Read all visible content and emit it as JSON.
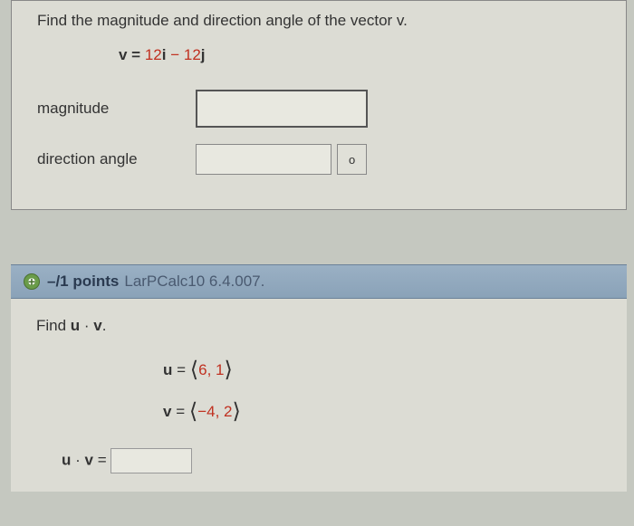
{
  "question1": {
    "prompt": "Find the magnitude and direction angle of the vector v.",
    "equation_prefix": "v = ",
    "coef1": "12",
    "unit1": "i",
    "op": " − ",
    "coef2": "12",
    "unit2": "j",
    "magnitude_label": "magnitude",
    "direction_label": "direction angle",
    "degree_symbol": "o"
  },
  "header": {
    "plus": "+",
    "points": "–/1 points",
    "reference": "LarPCalc10 6.4.007."
  },
  "question2": {
    "prompt_prefix": "Find ",
    "prompt_u": "u",
    "prompt_dot": " · ",
    "prompt_v": "v",
    "prompt_suffix": ".",
    "u_label": "u",
    "u_eq": " = ",
    "u_lb": "⟨",
    "u_vals": "6, 1",
    "u_rb": "⟩",
    "v_label": "v",
    "v_eq": " = ",
    "v_lb": "⟨",
    "v_vals": "−4, 2",
    "v_rb": "⟩",
    "result_u": "u",
    "result_dot": " · ",
    "result_v": "v",
    "result_eq": " = "
  }
}
